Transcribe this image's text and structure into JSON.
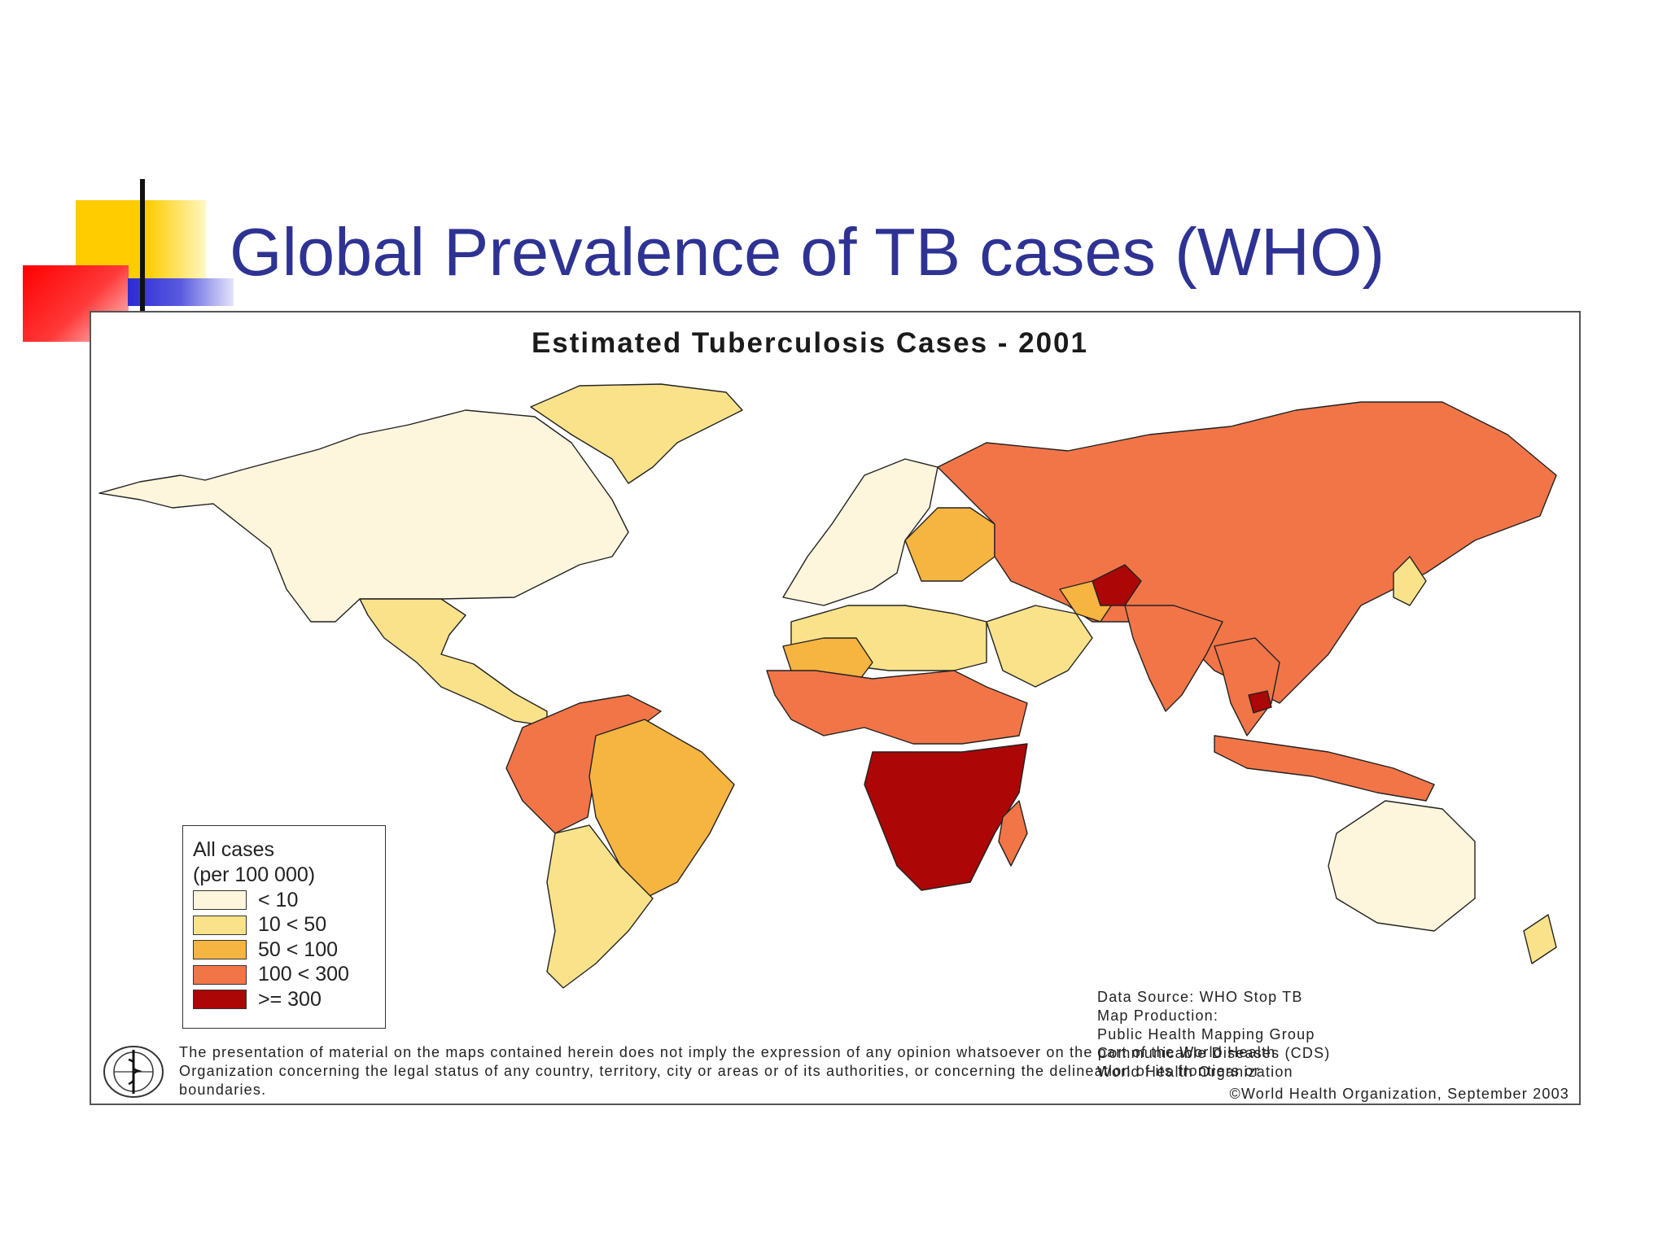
{
  "slide": {
    "title": "Global Prevalence of TB cases (WHO)"
  },
  "map": {
    "title": "Estimated Tuberculosis Cases - 2001",
    "legend": {
      "heading_line1": "All cases",
      "heading_line2": "(per 100 000)",
      "classes": [
        {
          "label": "< 10",
          "color": "#fdf5dc"
        },
        {
          "label": "10 < 50",
          "color": "#f9e28a"
        },
        {
          "label": "50 < 100",
          "color": "#f6b440"
        },
        {
          "label": "100 < 300",
          "color": "#f27548"
        },
        {
          "label": ">= 300",
          "color": "#ad0606"
        }
      ]
    },
    "disclaimer": "The presentation of material on the maps contained herein does not imply the expression of any opinion whatsoever on the part of the World Health Organization concerning the legal status of any country, territory, city or areas or of its authorities, or concerning the delineation of its frontiers or boundaries.",
    "credits": [
      "Data Source: WHO Stop TB",
      "Map Production:",
      "Public Health Mapping Group",
      "Communicable Diseases (CDS)",
      "World Health Organization"
    ],
    "copyright": "©World Health Organization, September 2003",
    "region_classes": {
      "north_america": "< 10",
      "greenland": "10 < 50",
      "mexico_central_america": "10 < 50",
      "south_america_north": "100 < 300",
      "brazil": "50 < 100",
      "south_america_south": "10 < 50",
      "western_europe": "< 10",
      "eastern_europe": "50 < 100",
      "russia_china": "100 < 300",
      "north_africa": "10 < 50",
      "sahel": "50 < 100",
      "west_africa": "100 < 300",
      "east_southern_africa": ">= 300",
      "madagascar": "100 < 300",
      "middle_east": "10 < 50",
      "iran": "50 < 100",
      "afghanistan": ">= 300",
      "india": "100 < 300",
      "southeast_asia": "100 < 300",
      "cambodia": ">= 300",
      "indonesia_png": "100 < 300",
      "japan": "10 < 50",
      "australia": "< 10",
      "new_zealand": "10 < 50"
    }
  }
}
